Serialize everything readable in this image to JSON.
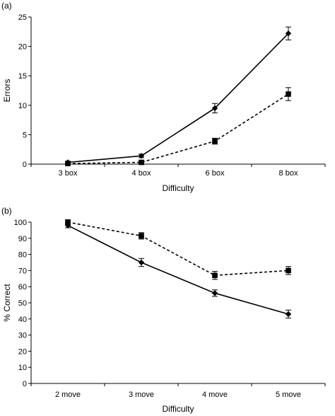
{
  "chart_data": [
    {
      "type": "line",
      "panel_label": "(a)",
      "categories": [
        "3 box",
        "4 box",
        "6 box",
        "8 box"
      ],
      "xlabel": "Difficulty",
      "ylabel": "Errors",
      "ylim": [
        0,
        25
      ],
      "yticks": [
        0,
        5,
        10,
        15,
        20,
        25
      ],
      "grid": false,
      "series": [
        {
          "marker": "diamond",
          "line": "solid",
          "color": "#000000",
          "values": [
            0.3,
            1.4,
            9.5,
            22.2
          ],
          "error": [
            0.2,
            0.3,
            0.8,
            1.1
          ]
        },
        {
          "marker": "square",
          "line": "dashed",
          "color": "#000000",
          "values": [
            0.1,
            0.3,
            3.9,
            11.9
          ],
          "error": [
            0.1,
            0.2,
            0.5,
            1.1
          ]
        }
      ]
    },
    {
      "type": "line",
      "panel_label": "(b)",
      "categories": [
        "2 move",
        "3 move",
        "4 move",
        "5 move"
      ],
      "xlabel": "Difficulty",
      "ylabel": "% Correct",
      "ylim": [
        0,
        100
      ],
      "yticks": [
        0,
        10,
        20,
        30,
        40,
        50,
        60,
        70,
        80,
        90,
        100
      ],
      "grid": false,
      "series": [
        {
          "marker": "diamond",
          "line": "solid",
          "color": "#000000",
          "values": [
            98,
            75,
            56,
            43
          ],
          "error": [
            1.5,
            2.5,
            2,
            2.5
          ]
        },
        {
          "marker": "square",
          "line": "dashed",
          "color": "#000000",
          "values": [
            100,
            91.5,
            67,
            70
          ],
          "error": [
            1.5,
            2,
            2.5,
            2.5
          ]
        }
      ]
    }
  ]
}
